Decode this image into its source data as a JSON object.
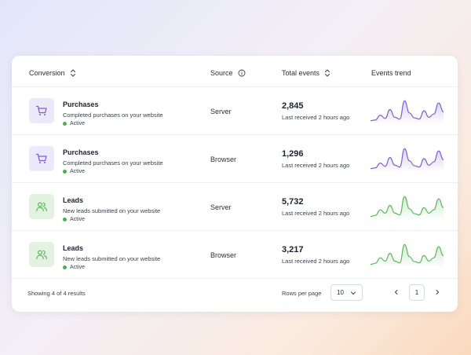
{
  "table": {
    "headers": {
      "conversion": "Conversion",
      "source": "Source",
      "total_events": "Total events",
      "events_trend": "Events trend"
    },
    "rows": [
      {
        "title": "Purchases",
        "description": "Completed purchases on your website",
        "status": "Active",
        "icon": "cart-icon",
        "accent": "#7b61d1",
        "source": "Server",
        "total": "2,845",
        "received": "Last received 2 hours ago",
        "trend": [
          0.05,
          0.08,
          0.3,
          0.15,
          0.55,
          0.2,
          0.12,
          0.95,
          0.4,
          0.18,
          0.12,
          0.5,
          0.2,
          0.35,
          0.85,
          0.45
        ]
      },
      {
        "title": "Purchases",
        "description": "Completed purchases on your website",
        "status": "Active",
        "icon": "cart-icon",
        "accent": "#7b61d1",
        "source": "Browser",
        "total": "1,296",
        "received": "Last received 2 hours ago",
        "trend": [
          0.05,
          0.08,
          0.3,
          0.15,
          0.55,
          0.2,
          0.12,
          0.95,
          0.4,
          0.18,
          0.12,
          0.5,
          0.2,
          0.35,
          0.85,
          0.45
        ]
      },
      {
        "title": "Leads",
        "description": "New leads submitted on your website",
        "status": "Active",
        "icon": "users-icon",
        "accent": "#5cb85c",
        "source": "Server",
        "total": "5,732",
        "received": "Last received 2 hours ago",
        "trend": [
          0.05,
          0.1,
          0.35,
          0.2,
          0.55,
          0.2,
          0.12,
          0.95,
          0.4,
          0.18,
          0.12,
          0.45,
          0.2,
          0.35,
          0.85,
          0.45
        ]
      },
      {
        "title": "Leads",
        "description": "New leads submitted on your website",
        "status": "Active",
        "icon": "users-icon",
        "accent": "#5cb85c",
        "source": "Browser",
        "total": "3,217",
        "received": "Last received 2 hours ago",
        "trend": [
          0.05,
          0.1,
          0.35,
          0.2,
          0.55,
          0.2,
          0.12,
          0.95,
          0.4,
          0.18,
          0.12,
          0.45,
          0.2,
          0.35,
          0.85,
          0.45
        ]
      }
    ]
  },
  "footer": {
    "showing": "Showing 4 of 4 results",
    "rows_per_page_label": "Rows per page",
    "rows_per_page_value": "10",
    "current_page": "1"
  },
  "colors": {
    "status_active": "#4caf50",
    "purple_accent": "#7b61d1",
    "green_accent": "#5cb85c"
  }
}
